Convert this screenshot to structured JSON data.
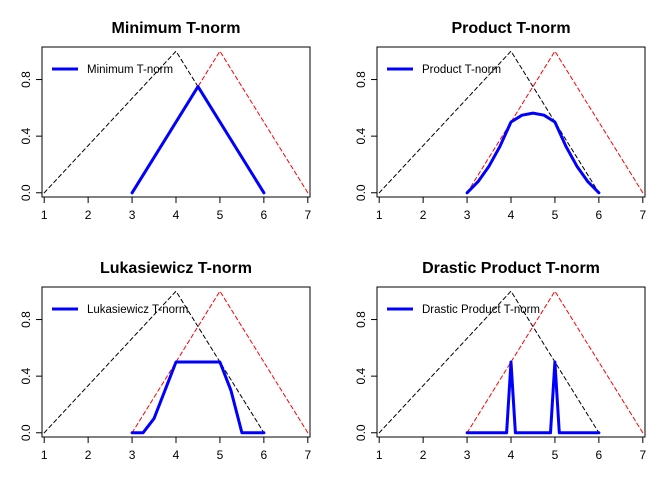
{
  "colors": {
    "set_a": "#000000",
    "set_b": "#ff0000",
    "tnorm": "#0000ff",
    "axis": "#000000",
    "background": "#ffffff"
  },
  "chart_data": [
    {
      "type": "line",
      "title": "Minimum T-norm",
      "xlim": [
        0.95,
        7.05
      ],
      "ylim": [
        -0.03,
        1.03
      ],
      "x_ticks": [
        1,
        2,
        3,
        4,
        5,
        6,
        7
      ],
      "y_ticks": [
        0.0,
        0.4,
        0.8
      ],
      "y_tick_labels": [
        "0.0",
        "0.4",
        "0.8"
      ],
      "legend": {
        "position": "top-left",
        "entries": [
          "Minimum T-norm"
        ]
      },
      "grid": false,
      "series": [
        {
          "style": "dashed",
          "color": "#000000",
          "x": [
            1,
            4,
            6
          ],
          "y": [
            0,
            1,
            0
          ]
        },
        {
          "style": "dashed",
          "color": "#ff0000",
          "x": [
            3,
            5,
            7
          ],
          "y": [
            0,
            1,
            0
          ]
        },
        {
          "style": "solid-thick",
          "color": "#0000ff",
          "x": [
            3,
            4.5,
            6
          ],
          "y": [
            0,
            0.75,
            0
          ]
        }
      ]
    },
    {
      "type": "line",
      "title": "Product T-norm",
      "xlim": [
        0.95,
        7.05
      ],
      "ylim": [
        -0.03,
        1.03
      ],
      "x_ticks": [
        1,
        2,
        3,
        4,
        5,
        6,
        7
      ],
      "y_ticks": [
        0.0,
        0.4,
        0.8
      ],
      "y_tick_labels": [
        "0.0",
        "0.4",
        "0.8"
      ],
      "legend": {
        "position": "top-left",
        "entries": [
          "Product T-norm"
        ]
      },
      "grid": false,
      "series": [
        {
          "style": "dashed",
          "color": "#000000",
          "x": [
            1,
            4,
            6
          ],
          "y": [
            0,
            1,
            0
          ]
        },
        {
          "style": "dashed",
          "color": "#ff0000",
          "x": [
            3,
            5,
            7
          ],
          "y": [
            0,
            1,
            0
          ]
        },
        {
          "style": "solid-thick",
          "color": "#0000ff",
          "x": [
            3,
            3.25,
            3.5,
            3.75,
            4,
            4.25,
            4.5,
            4.75,
            5,
            5.25,
            5.5,
            5.75,
            6
          ],
          "y": [
            0,
            0.078,
            0.188,
            0.328,
            0.5,
            0.548,
            0.563,
            0.548,
            0.5,
            0.328,
            0.188,
            0.078,
            0
          ]
        }
      ]
    },
    {
      "type": "line",
      "title": "Lukasiewicz T-norm",
      "xlim": [
        0.95,
        7.05
      ],
      "ylim": [
        -0.03,
        1.03
      ],
      "x_ticks": [
        1,
        2,
        3,
        4,
        5,
        6,
        7
      ],
      "y_ticks": [
        0.0,
        0.4,
        0.8
      ],
      "y_tick_labels": [
        "0.0",
        "0.4",
        "0.8"
      ],
      "legend": {
        "position": "top-left",
        "entries": [
          "Lukasiewicz T-norm"
        ]
      },
      "grid": false,
      "series": [
        {
          "style": "dashed",
          "color": "#000000",
          "x": [
            1,
            4,
            6
          ],
          "y": [
            0,
            1,
            0
          ]
        },
        {
          "style": "dashed",
          "color": "#ff0000",
          "x": [
            3,
            5,
            7
          ],
          "y": [
            0,
            1,
            0
          ]
        },
        {
          "style": "solid-thick",
          "color": "#0000ff",
          "x": [
            3,
            3.25,
            3.5,
            3.75,
            4,
            4.5,
            5,
            5.25,
            5.5,
            5.75,
            6
          ],
          "y": [
            0,
            0,
            0.1,
            0.3,
            0.5,
            0.5,
            0.5,
            0.3,
            0,
            0,
            0
          ]
        }
      ]
    },
    {
      "type": "line",
      "title": "Drastic Product T-norm",
      "xlim": [
        0.95,
        7.05
      ],
      "ylim": [
        -0.03,
        1.03
      ],
      "x_ticks": [
        1,
        2,
        3,
        4,
        5,
        6,
        7
      ],
      "y_ticks": [
        0.0,
        0.4,
        0.8
      ],
      "y_tick_labels": [
        "0.0",
        "0.4",
        "0.8"
      ],
      "legend": {
        "position": "top-left",
        "entries": [
          "Drastic Product T-norm"
        ]
      },
      "grid": false,
      "series": [
        {
          "style": "dashed",
          "color": "#000000",
          "x": [
            1,
            4,
            6
          ],
          "y": [
            0,
            1,
            0
          ]
        },
        {
          "style": "dashed",
          "color": "#ff0000",
          "x": [
            3,
            5,
            7
          ],
          "y": [
            0,
            1,
            0
          ]
        },
        {
          "style": "solid-thick",
          "color": "#0000ff",
          "x": [
            3,
            3.75,
            3.9,
            4,
            4.1,
            4.9,
            5,
            5.1,
            5.25,
            6
          ],
          "y": [
            0,
            0,
            0,
            0.5,
            0,
            0,
            0.5,
            0,
            0,
            0
          ]
        }
      ]
    }
  ]
}
